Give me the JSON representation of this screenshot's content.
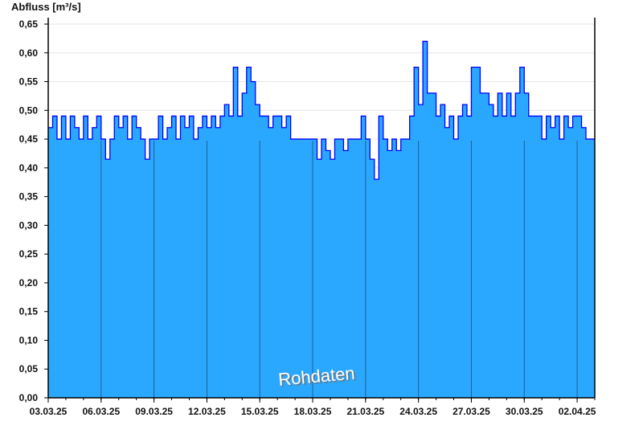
{
  "chart_data": {
    "type": "area",
    "ylabel": "Abfluss [m³/s]",
    "ylim": [
      0,
      0.65
    ],
    "yticks": [
      "0,00",
      "0,05",
      "0,10",
      "0,15",
      "0,20",
      "0,25",
      "0,30",
      "0,35",
      "0,40",
      "0,45",
      "0,50",
      "0,55",
      "0,60",
      "0,65"
    ],
    "xlim": [
      "03.03.25",
      "03.04.25"
    ],
    "xticks": [
      "03.03.25",
      "06.03.25",
      "09.03.25",
      "12.03.25",
      "15.03.25",
      "18.03.25",
      "21.03.25",
      "24.03.25",
      "27.03.25",
      "30.03.25",
      "02.04.25"
    ],
    "annotation": "Rohdaten",
    "grid": "horizontal light, vertical dark at labeled dates",
    "colors": {
      "fill": "#2aa8ff",
      "line": "#0000ff",
      "vgrid": "#1f5f8f",
      "hgrid": "#e6e6e6"
    },
    "sample_times": [
      "00:00",
      "06:00",
      "12:00",
      "18:00"
    ],
    "series": [
      {
        "date": "03.03.25",
        "values": [
          0.47,
          0.49,
          0.45,
          0.49
        ]
      },
      {
        "date": "04.03.25",
        "values": [
          0.45,
          0.49,
          0.47,
          0.45
        ]
      },
      {
        "date": "05.03.25",
        "values": [
          0.49,
          0.45,
          0.47,
          0.49
        ]
      },
      {
        "date": "06.03.25",
        "values": [
          0.45,
          0.415,
          0.45,
          0.49
        ]
      },
      {
        "date": "07.03.25",
        "values": [
          0.47,
          0.49,
          0.45,
          0.49
        ]
      },
      {
        "date": "08.03.25",
        "values": [
          0.47,
          0.45,
          0.415,
          0.45
        ]
      },
      {
        "date": "09.03.25",
        "values": [
          0.45,
          0.49,
          0.45,
          0.47
        ]
      },
      {
        "date": "10.03.25",
        "values": [
          0.49,
          0.45,
          0.49,
          0.47
        ]
      },
      {
        "date": "11.03.25",
        "values": [
          0.49,
          0.45,
          0.47,
          0.49
        ]
      },
      {
        "date": "12.03.25",
        "values": [
          0.47,
          0.49,
          0.47,
          0.49
        ]
      },
      {
        "date": "13.03.25",
        "values": [
          0.51,
          0.49,
          0.575,
          0.49
        ]
      },
      {
        "date": "14.03.25",
        "values": [
          0.53,
          0.575,
          0.55,
          0.51
        ]
      },
      {
        "date": "15.03.25",
        "values": [
          0.49,
          0.49,
          0.47,
          0.49
        ]
      },
      {
        "date": "16.03.25",
        "values": [
          0.49,
          0.47,
          0.49,
          0.45
        ]
      },
      {
        "date": "17.03.25",
        "values": [
          0.45,
          0.45,
          0.45,
          0.45
        ]
      },
      {
        "date": "18.03.25",
        "values": [
          0.45,
          0.415,
          0.45,
          0.43
        ]
      },
      {
        "date": "19.03.25",
        "values": [
          0.415,
          0.45,
          0.45,
          0.43
        ]
      },
      {
        "date": "20.03.25",
        "values": [
          0.45,
          0.45,
          0.45,
          0.49
        ]
      },
      {
        "date": "21.03.25",
        "values": [
          0.45,
          0.415,
          0.38,
          0.49
        ]
      },
      {
        "date": "22.03.25",
        "values": [
          0.45,
          0.43,
          0.45,
          0.43
        ]
      },
      {
        "date": "23.03.25",
        "values": [
          0.45,
          0.45,
          0.49,
          0.575
        ]
      },
      {
        "date": "24.03.25",
        "values": [
          0.51,
          0.62,
          0.53,
          0.53
        ]
      },
      {
        "date": "25.03.25",
        "values": [
          0.49,
          0.51,
          0.47,
          0.49
        ]
      },
      {
        "date": "26.03.25",
        "values": [
          0.45,
          0.49,
          0.51,
          0.49
        ]
      },
      {
        "date": "27.03.25",
        "values": [
          0.575,
          0.575,
          0.53,
          0.53
        ]
      },
      {
        "date": "28.03.25",
        "values": [
          0.51,
          0.49,
          0.53,
          0.49
        ]
      },
      {
        "date": "29.03.25",
        "values": [
          0.53,
          0.49,
          0.53,
          0.575
        ]
      },
      {
        "date": "30.03.25",
        "values": [
          0.53,
          0.49,
          0.49,
          0.49
        ]
      },
      {
        "date": "31.03.25",
        "values": [
          0.45,
          0.49,
          0.47,
          0.49
        ]
      },
      {
        "date": "01.04.25",
        "values": [
          0.45,
          0.49,
          0.47,
          0.49
        ]
      },
      {
        "date": "02.04.25",
        "values": [
          0.49,
          0.47,
          0.45,
          0.45
        ]
      }
    ]
  }
}
